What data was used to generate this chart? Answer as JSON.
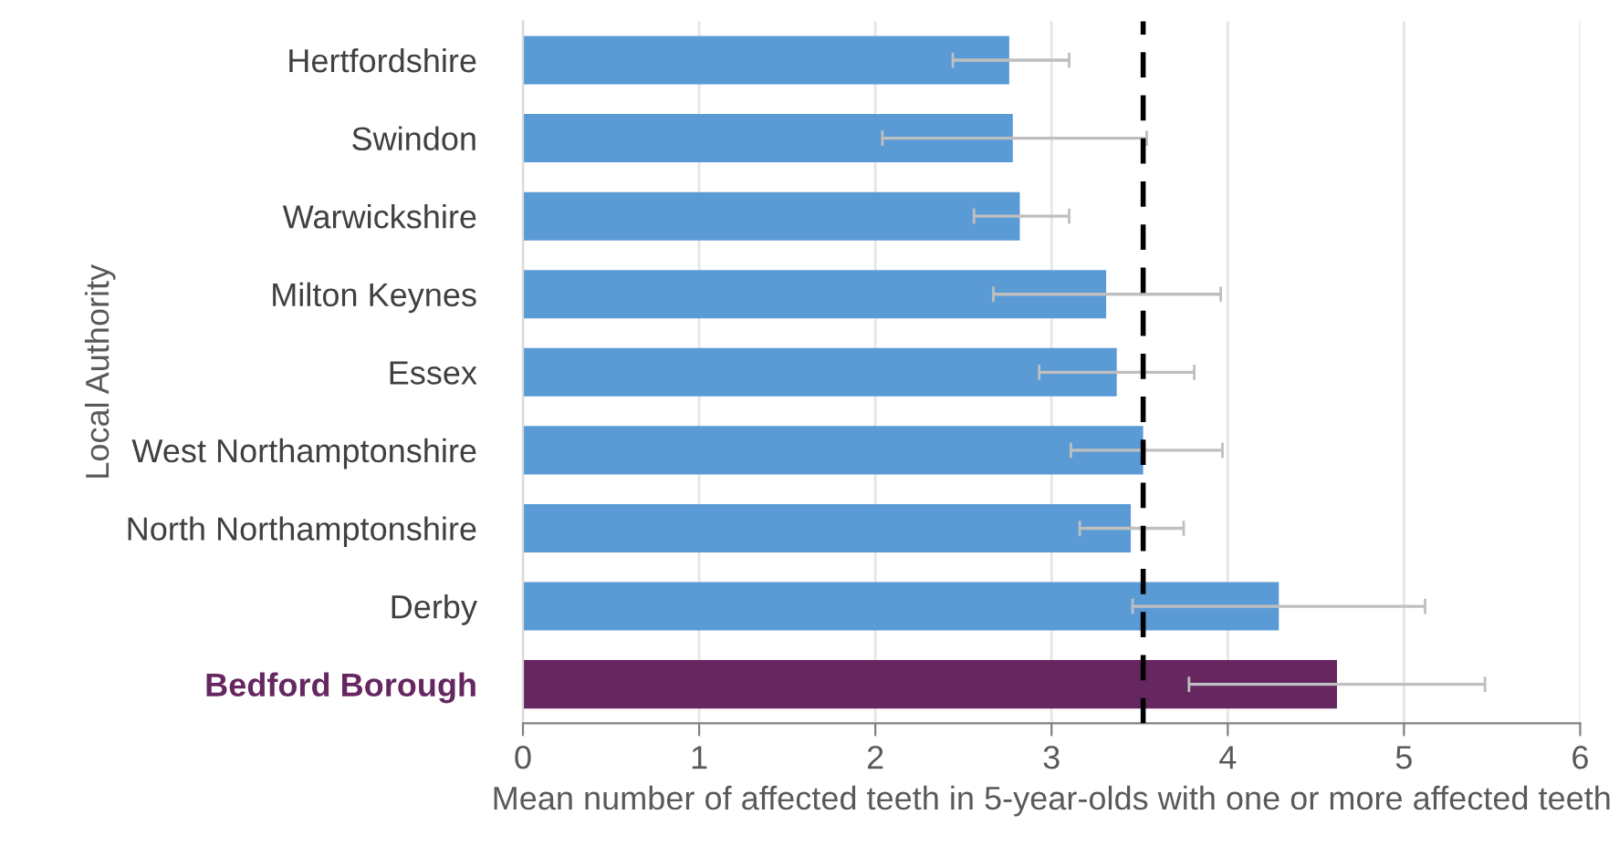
{
  "chart_data": {
    "type": "bar",
    "orientation": "horizontal",
    "xlabel": "Mean number of affected teeth in 5-year-olds with one or more affected teeth",
    "ylabel": "Local Authority",
    "categories": [
      "Hertfordshire",
      "Swindon",
      "Warwickshire",
      "Milton Keynes",
      "Essex",
      "West Northamptonshire",
      "North Northamptonshire",
      "Derby",
      "Bedford Borough"
    ],
    "values": [
      2.76,
      2.78,
      2.82,
      3.31,
      3.37,
      3.52,
      3.45,
      4.29,
      4.62
    ],
    "colors": [
      "#5b9bd5",
      "#5b9bd5",
      "#5b9bd5",
      "#5b9bd5",
      "#5b9bd5",
      "#5b9bd5",
      "#5b9bd5",
      "#5b9bd5",
      "#662761"
    ],
    "errors": [
      [
        2.44,
        3.1
      ],
      [
        2.04,
        3.54
      ],
      [
        2.56,
        3.1
      ],
      [
        2.67,
        3.96
      ],
      [
        2.93,
        3.81
      ],
      [
        3.11,
        3.97
      ],
      [
        3.16,
        3.75
      ],
      [
        3.46,
        5.12
      ],
      [
        3.78,
        5.46
      ]
    ],
    "xlim": [
      0,
      6
    ],
    "xticks": [
      0,
      1,
      2,
      3,
      4,
      5,
      6
    ],
    "grid": "x",
    "legend": false,
    "ref_lines": [
      {
        "axis": "x",
        "value": 3.52,
        "color": "#000000",
        "line_style": "dashed"
      }
    ]
  }
}
